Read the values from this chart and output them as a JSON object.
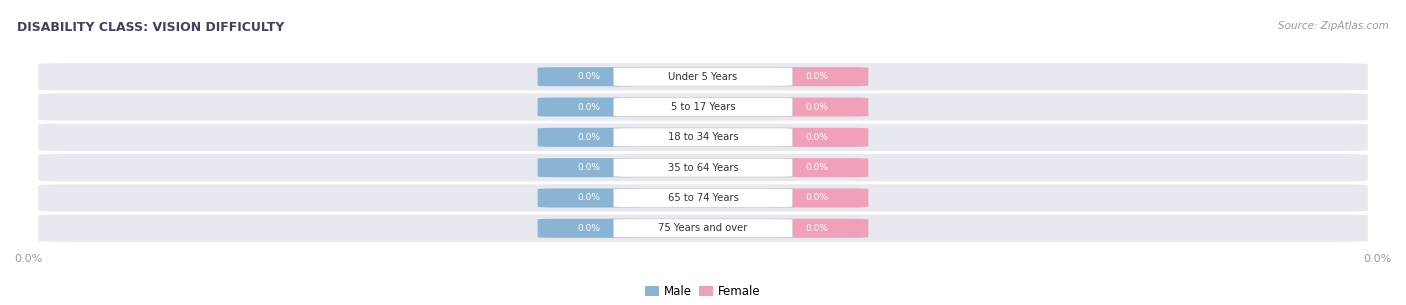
{
  "title": "DISABILITY CLASS: VISION DIFFICULTY",
  "source": "Source: ZipAtlas.com",
  "categories": [
    "Under 5 Years",
    "5 to 17 Years",
    "18 to 34 Years",
    "35 to 64 Years",
    "65 to 74 Years",
    "75 Years and over"
  ],
  "male_values": [
    0.0,
    0.0,
    0.0,
    0.0,
    0.0,
    0.0
  ],
  "female_values": [
    0.0,
    0.0,
    0.0,
    0.0,
    0.0,
    0.0
  ],
  "male_color": "#8ab4d4",
  "female_color": "#f0a0b8",
  "row_bg_color": "#e8e8f0",
  "title_color": "#404060",
  "label_text_color": "#ffffff",
  "category_text_color": "#333333",
  "axis_label_color": "#999999",
  "source_color": "#999999",
  "background_color": "#ffffff",
  "figsize": [
    14.06,
    3.05
  ],
  "dpi": 100
}
